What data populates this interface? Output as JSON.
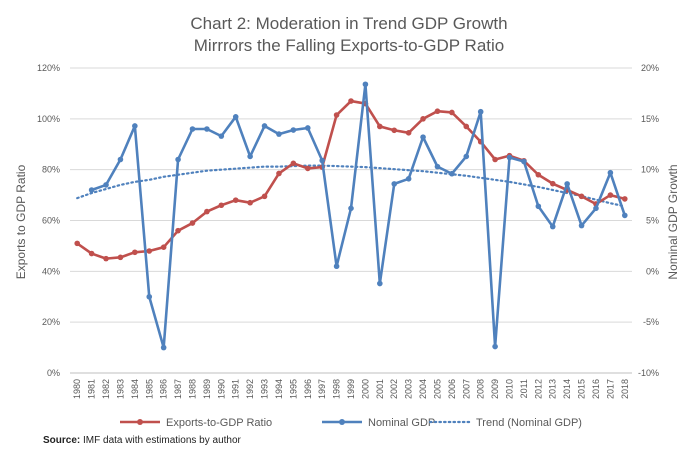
{
  "chart_data": {
    "type": "line",
    "title_lines": [
      "Chart 2: Moderation in Trend GDP Growth",
      "Mirrrors the Falling Exports-to-GDP Ratio"
    ],
    "ylabel_left": "Exports to GDP Ratio",
    "ylabel_right": "Nominal GDP Growth",
    "ylim_left": [
      0,
      120
    ],
    "ylim_right": [
      -10,
      20
    ],
    "y_ticks_left": [
      "0%",
      "20%",
      "40%",
      "60%",
      "80%",
      "100%",
      "120%"
    ],
    "y_ticks_right": [
      "-10%",
      "-5%",
      "0%",
      "5%",
      "10%",
      "15%",
      "20%"
    ],
    "grid": true,
    "legend_position": "bottom",
    "x": [
      "1980",
      "1981",
      "1982",
      "1983",
      "1984",
      "1985",
      "1986",
      "1987",
      "1988",
      "1989",
      "1990",
      "1991",
      "1992",
      "1993",
      "1994",
      "1995",
      "1996",
      "1997",
      "1998",
      "1999",
      "2000",
      "2001",
      "2002",
      "2003",
      "2004",
      "2005",
      "2006",
      "2007",
      "2008",
      "2009",
      "2010",
      "2011",
      "2012",
      "2013",
      "2014",
      "2015",
      "2016",
      "2017",
      "2018"
    ],
    "series": [
      {
        "name": "Exports-to-GDP Ratio",
        "axis": "left",
        "color": "#C0504D",
        "style": "solid-markers",
        "values": [
          51,
          47,
          45,
          45.5,
          47.5,
          48,
          49.5,
          56,
          59,
          63.5,
          66,
          68,
          67,
          69.5,
          78.5,
          82.5,
          80.5,
          81,
          101.5,
          107,
          106,
          97,
          95.5,
          94.5,
          100,
          103,
          102.5,
          97,
          91,
          84,
          85.5,
          83.5,
          78,
          74.5,
          72,
          69.5,
          66.5,
          70,
          68.5
        ]
      },
      {
        "name": "Nominal GDP",
        "axis": "right",
        "color": "#4F81BD",
        "style": "solid-markers",
        "values": [
          null,
          8,
          8.5,
          11,
          14.3,
          -2.5,
          -7.5,
          11,
          14,
          14,
          13.3,
          15.2,
          11.3,
          14.3,
          13.5,
          13.9,
          14.1,
          10.9,
          0.5,
          6.2,
          18.4,
          -1.2,
          8.6,
          9.1,
          13.2,
          10.3,
          9.6,
          11.3,
          15.7,
          -7.4,
          11.2,
          10.8,
          6.4,
          4.4,
          8.6,
          4.5,
          6.2,
          9.7,
          5.5
        ]
      },
      {
        "name": "Trend (Nominal GDP)",
        "axis": "right",
        "color": "#4F81BD",
        "style": "dotted",
        "values": [
          7.2,
          7.7,
          8.1,
          8.5,
          8.8,
          9.0,
          9.3,
          9.5,
          9.7,
          9.9,
          10.0,
          10.1,
          10.2,
          10.3,
          10.3,
          10.35,
          10.4,
          10.4,
          10.35,
          10.3,
          10.25,
          10.15,
          10.05,
          9.95,
          9.85,
          9.7,
          9.55,
          9.4,
          9.2,
          9.0,
          8.8,
          8.55,
          8.3,
          8.0,
          7.7,
          7.4,
          7.05,
          6.7,
          6.4
        ]
      }
    ]
  },
  "source": {
    "label": "Source:",
    "text": " IMF data with estimations by author"
  }
}
